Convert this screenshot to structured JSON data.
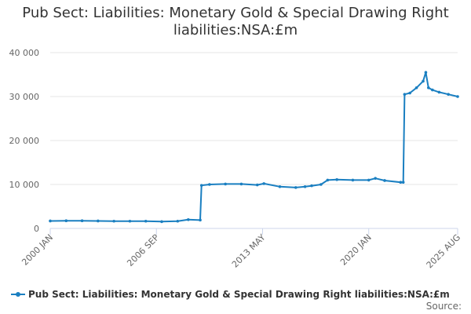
{
  "title_line1": "Pub Sect: Liabilities: Monetary Gold & Special Drawing Right",
  "title_line2": "liabilities:NSA:£m",
  "source_label": "Source:",
  "colors": {
    "series": "#1a7fc1",
    "grid": "#e6e6e6",
    "axis": "#ccd6eb",
    "text": "#333333",
    "tick": "#666666"
  },
  "chart_data": {
    "type": "line",
    "title": "Pub Sect: Liabilities: Monetary Gold & Special Drawing Right liabilities:NSA:£m",
    "ylim": [
      0,
      40000
    ],
    "yticks": [
      0,
      10000,
      20000,
      30000,
      40000
    ],
    "ytick_labels": [
      "0",
      "10 000",
      "20 000",
      "30 000",
      "40 000"
    ],
    "xticks": [
      "2000-01",
      "2006-09",
      "2013-05",
      "2020-01",
      "2025-08"
    ],
    "xtick_labels": [
      "2000 JAN",
      "2006 SEP",
      "2013 MAY",
      "2020 JAN",
      "2025 AUG"
    ],
    "xlim": [
      "2000-01",
      "2025-08"
    ],
    "grid": true,
    "legend": "bottom",
    "series": [
      {
        "name": "Pub Sect: Liabilities: Monetary Gold & Special Drawing Right liabilities:NSA:£m",
        "points": [
          [
            "2000-01",
            1700
          ],
          [
            "2001-01",
            1750
          ],
          [
            "2002-01",
            1750
          ],
          [
            "2003-01",
            1700
          ],
          [
            "2004-01",
            1650
          ],
          [
            "2005-01",
            1650
          ],
          [
            "2006-01",
            1650
          ],
          [
            "2007-01",
            1550
          ],
          [
            "2008-01",
            1650
          ],
          [
            "2008-09",
            2000
          ],
          [
            "2009-06",
            1900
          ],
          [
            "2009-07",
            9800
          ],
          [
            "2010-01",
            10000
          ],
          [
            "2011-01",
            10100
          ],
          [
            "2012-01",
            10100
          ],
          [
            "2013-01",
            9900
          ],
          [
            "2013-06",
            10200
          ],
          [
            "2014-06",
            9500
          ],
          [
            "2015-06",
            9300
          ],
          [
            "2016-01",
            9500
          ],
          [
            "2016-06",
            9700
          ],
          [
            "2017-01",
            10000
          ],
          [
            "2017-06",
            11000
          ],
          [
            "2018-01",
            11100
          ],
          [
            "2019-01",
            11000
          ],
          [
            "2020-01",
            11000
          ],
          [
            "2020-06",
            11400
          ],
          [
            "2021-01",
            10900
          ],
          [
            "2022-01",
            10500
          ],
          [
            "2022-03",
            10500
          ],
          [
            "2022-04",
            30500
          ],
          [
            "2022-08",
            30800
          ],
          [
            "2023-01",
            32000
          ],
          [
            "2023-06",
            33500
          ],
          [
            "2023-08",
            35500
          ],
          [
            "2023-10",
            32000
          ],
          [
            "2024-01",
            31500
          ],
          [
            "2024-06",
            31000
          ],
          [
            "2025-01",
            30500
          ],
          [
            "2025-08",
            30000
          ]
        ]
      }
    ]
  }
}
